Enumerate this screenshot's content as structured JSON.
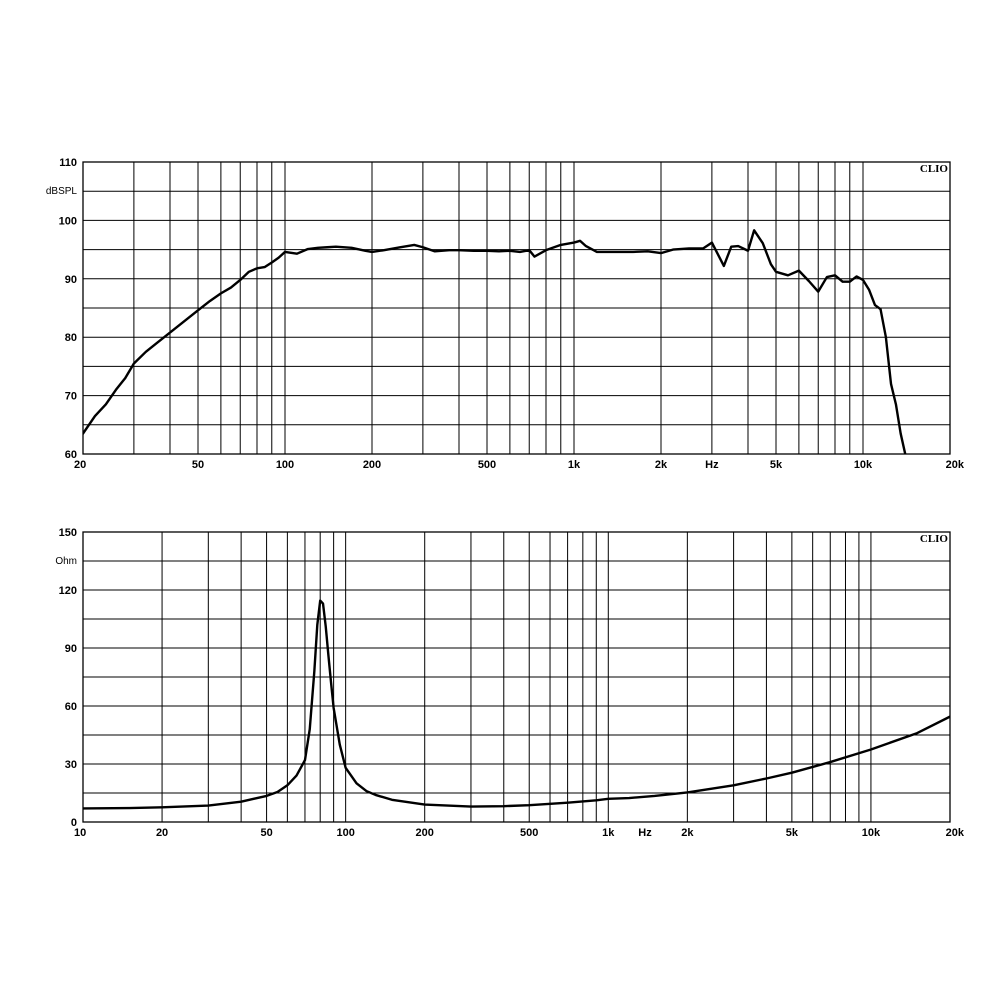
{
  "chart_data": [
    {
      "type": "line",
      "brand": "CLIO",
      "xlabel": "Hz",
      "ylabel": "dBSPL",
      "xscale": "log",
      "xlim": [
        20,
        20000
      ],
      "ylim": [
        60,
        110
      ],
      "grid": true,
      "x_ticks": [
        {
          "v": 20,
          "label": "20"
        },
        {
          "v": 50,
          "label": "50"
        },
        {
          "v": 100,
          "label": "100"
        },
        {
          "v": 200,
          "label": "200"
        },
        {
          "v": 500,
          "label": "500"
        },
        {
          "v": 1000,
          "label": "1k"
        },
        {
          "v": 2000,
          "label": "2k"
        },
        {
          "v": 5000,
          "label": "5k"
        },
        {
          "v": 10000,
          "label": "10k"
        },
        {
          "v": 20000,
          "label": "20k"
        }
      ],
      "y_ticks": [
        60,
        70,
        80,
        90,
        100,
        110
      ],
      "series": [
        {
          "x": [
            20,
            22,
            24,
            26,
            28,
            30,
            33,
            36,
            40,
            45,
            50,
            55,
            60,
            65,
            70,
            75,
            80,
            85,
            90,
            95,
            100,
            110,
            120,
            130,
            140,
            150,
            170,
            190,
            200,
            220,
            250,
            280,
            300,
            330,
            370,
            400,
            450,
            500,
            550,
            600,
            650,
            700,
            730,
            800,
            900,
            1000,
            1050,
            1100,
            1200,
            1400,
            1600,
            1800,
            2000,
            2200,
            2500,
            2800,
            3000,
            3300,
            3500,
            3700,
            4000,
            4200,
            4500,
            4800,
            5000,
            5500,
            6000,
            6500,
            7000,
            7500,
            8000,
            8500,
            9000,
            9500,
            10000,
            10500,
            11000,
            11500,
            12000,
            12500,
            13000,
            13500,
            14000
          ],
          "y": [
            63.5,
            66.5,
            68.5,
            71,
            73,
            75.5,
            77.5,
            79,
            80.8,
            82.8,
            84.6,
            86.2,
            87.5,
            88.5,
            89.8,
            91.2,
            91.8,
            92,
            92.8,
            93.6,
            94.6,
            94.3,
            95.1,
            95.3,
            95.4,
            95.5,
            95.3,
            94.8,
            94.6,
            94.9,
            95.4,
            95.8,
            95.4,
            94.7,
            94.9,
            94.9,
            94.8,
            94.8,
            94.7,
            94.8,
            94.6,
            94.9,
            93.8,
            94.9,
            95.8,
            96.2,
            96.5,
            95.6,
            94.6,
            94.6,
            94.6,
            94.7,
            94.4,
            95,
            95.2,
            95.2,
            96.2,
            92.2,
            95.5,
            95.6,
            94.8,
            98.3,
            96.1,
            92.5,
            91.2,
            90.6,
            91.4,
            89.6,
            87.8,
            90.3,
            90.6,
            89.5,
            89.5,
            90.4,
            89.8,
            88.1,
            85.5,
            84.8,
            80,
            72,
            68.5,
            63.5,
            60
          ]
        }
      ]
    },
    {
      "type": "line",
      "brand": "CLIO",
      "xlabel": "Hz",
      "ylabel": "Ohm",
      "xscale": "log",
      "xlim": [
        10,
        20000
      ],
      "ylim": [
        0,
        150
      ],
      "grid": true,
      "x_ticks": [
        {
          "v": 10,
          "label": "10"
        },
        {
          "v": 20,
          "label": "20"
        },
        {
          "v": 50,
          "label": "50"
        },
        {
          "v": 100,
          "label": "100"
        },
        {
          "v": 200,
          "label": "200"
        },
        {
          "v": 500,
          "label": "500"
        },
        {
          "v": 1000,
          "label": "1k"
        },
        {
          "v": 2000,
          "label": "2k"
        },
        {
          "v": 5000,
          "label": "5k"
        },
        {
          "v": 10000,
          "label": "10k"
        },
        {
          "v": 20000,
          "label": "20k"
        }
      ],
      "y_ticks": [
        0,
        30,
        60,
        90,
        120,
        150
      ],
      "series": [
        {
          "x": [
            10,
            15,
            20,
            30,
            40,
            50,
            55,
            60,
            65,
            70,
            73,
            76,
            78,
            80,
            82,
            84,
            86,
            88,
            90,
            95,
            100,
            110,
            120,
            130,
            150,
            200,
            300,
            400,
            500,
            700,
            900,
            1000,
            1200,
            1500,
            2000,
            3000,
            4000,
            5000,
            7000,
            10000,
            15000,
            20000
          ],
          "y": [
            7,
            7.2,
            7.6,
            8.5,
            10.5,
            13.5,
            15.5,
            19,
            24,
            32,
            48,
            78,
            102,
            114.5,
            113,
            101,
            86,
            72,
            59,
            40,
            28,
            20,
            16,
            14,
            11.5,
            9,
            8,
            8.2,
            8.7,
            10,
            11.2,
            12,
            12.4,
            13.5,
            15.3,
            19,
            22.5,
            25.5,
            31,
            37.5,
            46,
            54.5
          ]
        }
      ]
    }
  ]
}
